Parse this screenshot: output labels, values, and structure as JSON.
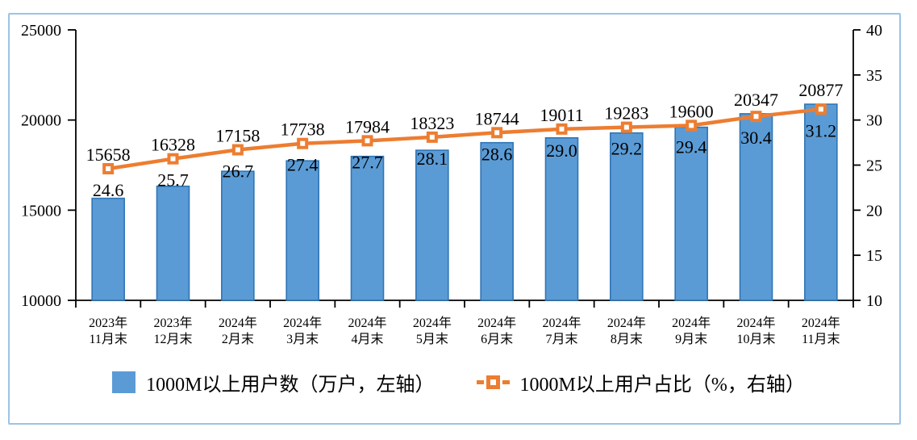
{
  "frame": {
    "border_color": "#9CC3E6",
    "background": "#FFFFFF"
  },
  "chart_data": {
    "type": "bar",
    "title": "",
    "categories": [
      [
        "2023年",
        "11月末"
      ],
      [
        "2023年",
        "12月末"
      ],
      [
        "2024年",
        "2月末"
      ],
      [
        "2024年",
        "3月末"
      ],
      [
        "2024年",
        "4月末"
      ],
      [
        "2024年",
        "5月末"
      ],
      [
        "2024年",
        "6月末"
      ],
      [
        "2024年",
        "7月末"
      ],
      [
        "2024年",
        "8月末"
      ],
      [
        "2024年",
        "9月末"
      ],
      [
        "2024年",
        "10月末"
      ],
      [
        "2024年",
        "11月末"
      ]
    ],
    "series": [
      {
        "name": "1000M以上用户数（万户，左轴）",
        "type": "bar",
        "axis": "left",
        "color": "#5B9BD5",
        "border_color": "#2E75B6",
        "values": [
          15658,
          16328,
          17158,
          17738,
          17984,
          18323,
          18744,
          19011,
          19283,
          19600,
          20347,
          20877
        ],
        "labels": [
          "15658",
          "16328",
          "17158",
          "17738",
          "17984",
          "18323",
          "18744",
          "19011",
          "19283",
          "19600",
          "20347",
          "20877"
        ]
      },
      {
        "name": "1000M以上用户占比（%，右轴）",
        "type": "line",
        "axis": "right",
        "color": "#ED7D31",
        "marker": "square-open",
        "values": [
          24.6,
          25.7,
          26.7,
          27.4,
          27.7,
          28.1,
          28.6,
          29.0,
          29.2,
          29.4,
          30.4,
          31.2
        ],
        "labels": [
          "24.6",
          "25.7",
          "26.7",
          "27.4",
          "27.7",
          "28.1",
          "28.6",
          "29.0",
          "29.2",
          "29.4",
          "30.4",
          "31.2"
        ]
      }
    ],
    "left_axis": {
      "min": 10000,
      "max": 25000,
      "step": 5000,
      "ticks": [
        "10000",
        "15000",
        "20000",
        "25000"
      ]
    },
    "right_axis": {
      "min": 10,
      "max": 40,
      "step": 5,
      "ticks": [
        "10",
        "15",
        "20",
        "25",
        "30",
        "35",
        "40"
      ]
    },
    "grid": "off",
    "legend_position": "bottom",
    "axis_color": "#000000",
    "text_color": "#000000"
  }
}
